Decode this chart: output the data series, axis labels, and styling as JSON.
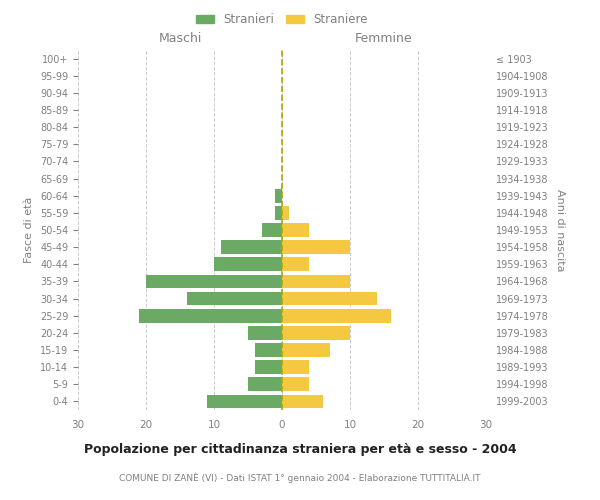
{
  "age_groups": [
    "100+",
    "95-99",
    "90-94",
    "85-89",
    "80-84",
    "75-79",
    "70-74",
    "65-69",
    "60-64",
    "55-59",
    "50-54",
    "45-49",
    "40-44",
    "35-39",
    "30-34",
    "25-29",
    "20-24",
    "15-19",
    "10-14",
    "5-9",
    "0-4"
  ],
  "birth_years": [
    "≤ 1903",
    "1904-1908",
    "1909-1913",
    "1914-1918",
    "1919-1923",
    "1924-1928",
    "1929-1933",
    "1934-1938",
    "1939-1943",
    "1944-1948",
    "1949-1953",
    "1954-1958",
    "1959-1963",
    "1964-1968",
    "1969-1973",
    "1974-1978",
    "1979-1983",
    "1984-1988",
    "1989-1993",
    "1994-1998",
    "1999-2003"
  ],
  "males": [
    0,
    0,
    0,
    0,
    0,
    0,
    0,
    0,
    1,
    1,
    3,
    9,
    10,
    20,
    14,
    21,
    5,
    4,
    4,
    5,
    11
  ],
  "females": [
    0,
    0,
    0,
    0,
    0,
    0,
    0,
    0,
    0,
    1,
    4,
    10,
    4,
    10,
    14,
    16,
    10,
    7,
    4,
    4,
    6
  ],
  "male_color": "#6aaa64",
  "female_color": "#f5c842",
  "background_color": "#ffffff",
  "grid_color": "#cccccc",
  "title": "Popolazione per cittadinanza straniera per età e sesso - 2004",
  "subtitle": "COMUNE DI ZANÈ (VI) - Dati ISTAT 1° gennaio 2004 - Elaborazione TUTTITALIA.IT",
  "xlabel_left": "Maschi",
  "xlabel_right": "Femmine",
  "ylabel_left": "Fasce di età",
  "ylabel_right": "Anni di nascita",
  "legend_male": "Stranieri",
  "legend_female": "Straniere",
  "xlim": 30,
  "bar_height": 0.8,
  "center_line_color": "#aaaa00",
  "text_color": "#808080"
}
